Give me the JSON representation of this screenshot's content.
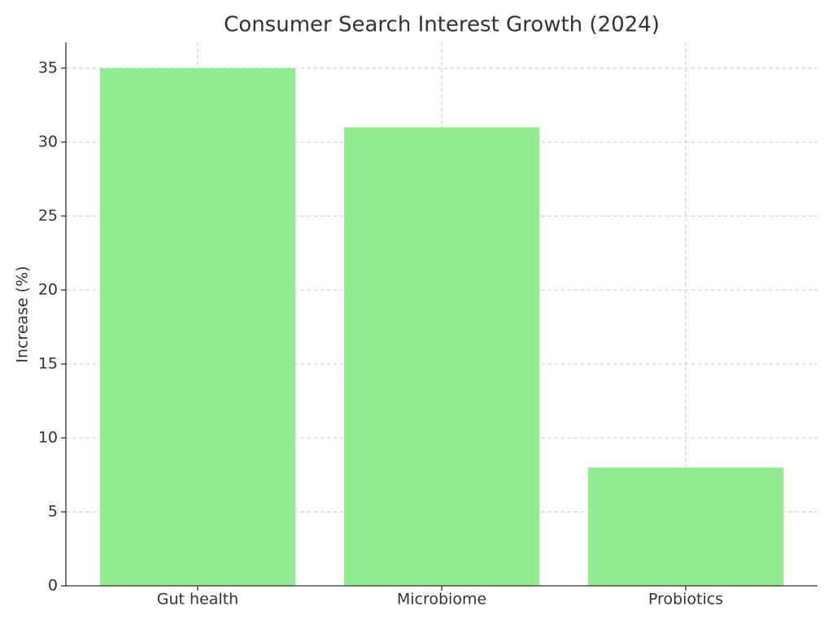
{
  "chart_data": {
    "type": "bar",
    "title": "Consumer Search Interest Growth (2024)",
    "y_label": "Increase (%)",
    "categories": [
      "Gut health",
      "Microbiome",
      "Probiotics"
    ],
    "values": [
      35,
      31,
      8
    ],
    "color": "#90ee90",
    "ylim": [
      0,
      36.75
    ],
    "yticks": [
      0,
      5,
      10,
      15,
      20,
      25,
      30,
      35
    ],
    "grid": true
  }
}
